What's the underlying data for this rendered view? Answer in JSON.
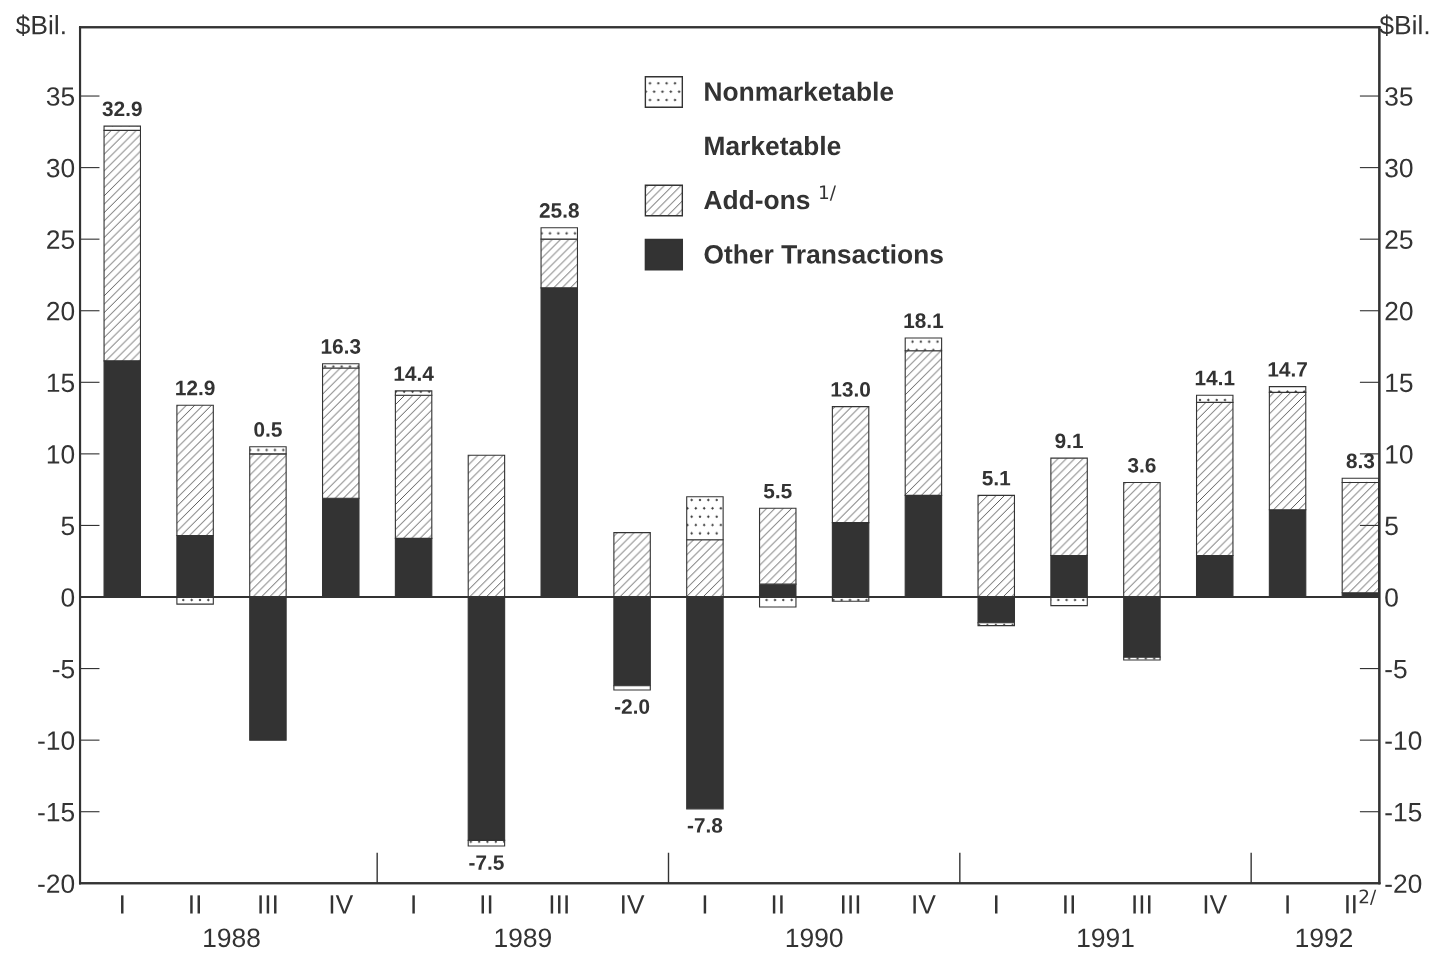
{
  "chart_data": {
    "type": "bar",
    "stacked": true,
    "ylabel": "$Bil.",
    "y2label": "$Bil.",
    "categories": [
      "I",
      "II",
      "III",
      "IV",
      "I",
      "II",
      "III",
      "IV",
      "I",
      "II",
      "III",
      "IV",
      "I",
      "II",
      "III",
      "IV",
      "I",
      "II$^{2/}$"
    ],
    "series": [
      {
        "name": "Other Transactions",
        "color": "#333333",
        "values": [
          16.5,
          4.3,
          -10.0,
          6.9,
          4.1,
          -17.0,
          21.6,
          -6.2,
          -14.8,
          0.9,
          5.2,
          7.1,
          -1.8,
          2.9,
          -4.2,
          2.9,
          6.1,
          0.3
        ]
      },
      {
        "name": "Add-ons $^{1/}$",
        "color": "#333333",
        "values": [
          16.1,
          9.1,
          10.0,
          9.1,
          10.0,
          9.9,
          3.4,
          4.5,
          4.0,
          5.3,
          8.1,
          10.1,
          7.1,
          6.8,
          8.0,
          10.7,
          8.2,
          7.7
        ]
      },
      {
        "name": "Nonmarketable",
        "color": "#333333",
        "values": [
          0.3,
          -0.5,
          0.5,
          0.3,
          0.3,
          -0.4,
          0.8,
          -0.3,
          3.0,
          -0.7,
          -0.3,
          0.9,
          -0.2,
          -0.6,
          -0.2,
          0.5,
          0.4,
          0.3
        ]
      }
    ],
    "totals": [
      "32.9",
      "12.9",
      "0.5",
      "16.3",
      "14.4",
      "-7.5",
      "25.8",
      "-2.0",
      "-7.8",
      "5.5",
      "13.0",
      "18.1",
      "5.1",
      "9.1",
      "3.6",
      "14.1",
      "14.7",
      "8.3"
    ],
    "ylim": [
      -20,
      39.8
    ],
    "yticks": [
      -20,
      -15,
      -10,
      -5,
      0,
      5,
      10,
      15,
      20,
      25,
      30,
      35
    ],
    "y2lim": [
      -20,
      39.8
    ],
    "y2ticks": [
      -20,
      -15,
      -10,
      -5,
      0,
      5,
      10,
      15,
      20,
      25,
      30,
      35
    ],
    "ref_lines": [
      {
        "axis": "y",
        "value": 0,
        "color": "#333333"
      }
    ],
    "annotations": [
      "Marketable",
      "1988",
      "1989",
      "1990",
      "1991",
      "1992"
    ],
    "legend": "top",
    "grid": false
  }
}
